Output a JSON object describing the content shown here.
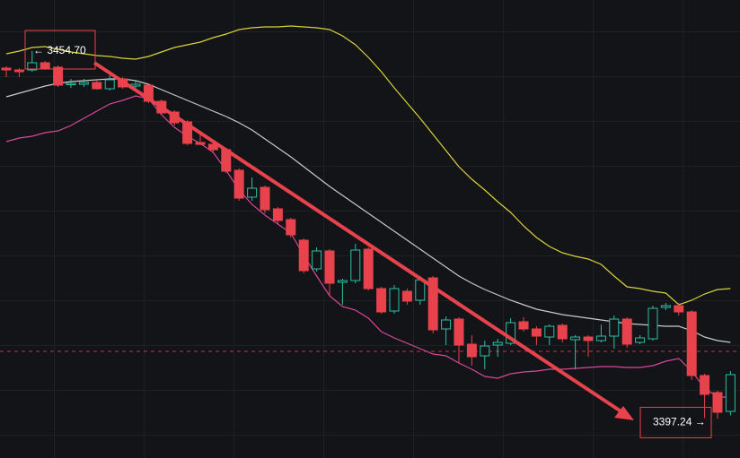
{
  "chart_data": {
    "type": "candlestick",
    "ylim": [
      3391.14,
      3462.68
    ],
    "up_color": "#2bbfa4",
    "down_color": "#e8434c",
    "reference_line": 3407.8,
    "open": [
      3452.04,
      3451.76,
      3451.76,
      3452.88,
      3452.18,
      3449.52,
      3449.52,
      3449.8,
      3448.82,
      3450.36,
      3449.24,
      3449.38,
      3446.86,
      3445.18,
      3443.64,
      3440.42,
      3440.14,
      3439.3,
      3436.08,
      3431.88,
      3433.42,
      3430.06,
      3428.38,
      3425.16,
      3420.68,
      3423.48,
      3418.58,
      3418.86,
      3423.76,
      3417.6,
      3414.1,
      3417.18,
      3415.78,
      3419.28,
      3411.3,
      3412.84,
      3408.92,
      3407.1,
      3408.78,
      3409.06,
      3412.42,
      3411.3,
      3410.04,
      3411.86,
      3409.62,
      3410.04,
      3409.48,
      3410.18,
      3412.84,
      3409.2,
      3409.76,
      3414.66,
      3414.94,
      3413.96,
      3404.02,
      3401.36,
      3398.42
    ],
    "high": [
      3452.32,
      3452.04,
      3454.7,
      3453.16,
      3452.46,
      3450.36,
      3450.36,
      3450.08,
      3450.92,
      3450.64,
      3450.08,
      3449.66,
      3447.14,
      3445.46,
      3443.92,
      3441.68,
      3440.56,
      3439.58,
      3436.36,
      3434.96,
      3433.7,
      3430.34,
      3428.66,
      3425.44,
      3424.04,
      3423.76,
      3419.14,
      3424.6,
      3424.04,
      3417.88,
      3418.16,
      3417.6,
      3419.56,
      3419.56,
      3413.26,
      3413.12,
      3410.32,
      3409.48,
      3409.76,
      3412.98,
      3413.12,
      3411.72,
      3412.0,
      3412.14,
      3410.32,
      3410.32,
      3411.96,
      3413.4,
      3413.12,
      3410.32,
      3414.94,
      3415.36,
      3415.36,
      3414.24,
      3404.3,
      3401.64,
      3404.72
    ],
    "low": [
      3450.64,
      3450.64,
      3451.48,
      3451.76,
      3449.1,
      3448.96,
      3449.1,
      3448.68,
      3448.54,
      3448.82,
      3448.96,
      3446.58,
      3444.76,
      3443.08,
      3440.0,
      3440.0,
      3438.88,
      3435.66,
      3431.32,
      3431.32,
      3429.36,
      3427.68,
      3425.58,
      3420.0,
      3420.26,
      3416.48,
      3415.08,
      3418.44,
      3417.32,
      3413.68,
      3413.68,
      3415.08,
      3415.08,
      3410.6,
      3408.78,
      3405.98,
      3405.56,
      3404.99,
      3406.96,
      3408.78,
      3410.88,
      3408.78,
      3408.78,
      3409.2,
      3404.99,
      3406.96,
      3409.2,
      3408.22,
      3408.36,
      3408.92,
      3409.48,
      3414.24,
      3413.4,
      3403.32,
      3397.38,
      3397.24,
      3397.8
    ],
    "close": [
      3451.76,
      3451.48,
      3452.88,
      3452.04,
      3449.38,
      3449.66,
      3449.8,
      3448.82,
      3450.22,
      3449.1,
      3449.52,
      3446.86,
      3445.04,
      3443.5,
      3440.28,
      3440.14,
      3439.3,
      3435.94,
      3431.74,
      3433.28,
      3429.92,
      3428.24,
      3426.0,
      3420.4,
      3423.48,
      3418.44,
      3418.86,
      3423.62,
      3417.6,
      3413.96,
      3417.6,
      3415.64,
      3418.96,
      3411.16,
      3412.7,
      3408.78,
      3406.96,
      3408.64,
      3409.2,
      3412.28,
      3411.3,
      3410.18,
      3411.72,
      3409.76,
      3410.04,
      3409.48,
      3410.18,
      3412.84,
      3408.92,
      3409.9,
      3414.52,
      3414.94,
      3413.96,
      3404.02,
      3401.08,
      3398.28,
      3404.16
    ],
    "series": [
      {
        "color": "#d8d23a",
        "values": [
          3454.28,
          3454.7,
          3455.26,
          3455.4,
          3454.98,
          3454.56,
          3454.28,
          3454.0,
          3453.86,
          3453.58,
          3453.44,
          3453.86,
          3454.56,
          3455.26,
          3455.68,
          3456.1,
          3456.8,
          3457.36,
          3458.06,
          3458.34,
          3458.48,
          3458.48,
          3458.62,
          3458.48,
          3458.34,
          3458.06,
          3457.08,
          3455.68,
          3453.72,
          3451.48,
          3448.96,
          3446.58,
          3444.2,
          3441.68,
          3439.16,
          3436.64,
          3434.68,
          3433.0,
          3431.18,
          3429.5,
          3427.4,
          3425.58,
          3424.18,
          3423.2,
          3422.64,
          3422.22,
          3421.38,
          3419.56,
          3417.88,
          3417.6,
          3417.18,
          3416.9,
          3415.08,
          3415.78,
          3416.76,
          3417.46,
          3417.6
        ]
      },
      {
        "color": "#c9c9cc",
        "values": [
          3447.56,
          3448.12,
          3448.68,
          3449.24,
          3449.66,
          3449.94,
          3450.08,
          3450.22,
          3450.36,
          3450.36,
          3450.08,
          3449.52,
          3448.68,
          3447.84,
          3447.0,
          3446.16,
          3445.32,
          3444.48,
          3443.5,
          3442.38,
          3440.98,
          3439.58,
          3438.18,
          3436.64,
          3435.1,
          3433.56,
          3432.16,
          3430.76,
          3429.36,
          3427.96,
          3426.56,
          3425.16,
          3423.76,
          3422.36,
          3420.96,
          3419.56,
          3418.44,
          3417.46,
          3416.62,
          3415.78,
          3415.08,
          3414.38,
          3413.96,
          3413.54,
          3413.26,
          3412.98,
          3412.7,
          3412.42,
          3412.14,
          3412.0,
          3411.86,
          3411.72,
          3411.72,
          3411.02,
          3410.04,
          3409.48,
          3409.2
        ]
      },
      {
        "color": "#d9479a",
        "values": [
          3440.56,
          3441.12,
          3441.4,
          3441.96,
          3442.24,
          3443.08,
          3444.2,
          3445.32,
          3446.44,
          3447.0,
          3447.7,
          3447.28,
          3444.76,
          3442.8,
          3441.4,
          3440.28,
          3438.88,
          3436.08,
          3433.0,
          3430.76,
          3429.08,
          3427.68,
          3426.28,
          3422.78,
          3419.56,
          3416.48,
          3414.8,
          3414.24,
          3412.98,
          3410.88,
          3409.9,
          3409.06,
          3408.22,
          3407.38,
          3407.1,
          3405.98,
          3405.0,
          3403.88,
          3403.6,
          3404.3,
          3404.58,
          3404.72,
          3405.0,
          3405.0,
          3405.14,
          3405.28,
          3405.42,
          3405.42,
          3405.28,
          3405.28,
          3405.56,
          3406.26,
          3406.68,
          3404.72,
          3402.06,
          3400.66,
          3400.66
        ]
      }
    ],
    "annotations": [
      {
        "label": "← 3454.70",
        "value": 3454.7
      },
      {
        "label": "3397.24 →",
        "value": 3397.24
      }
    ]
  }
}
